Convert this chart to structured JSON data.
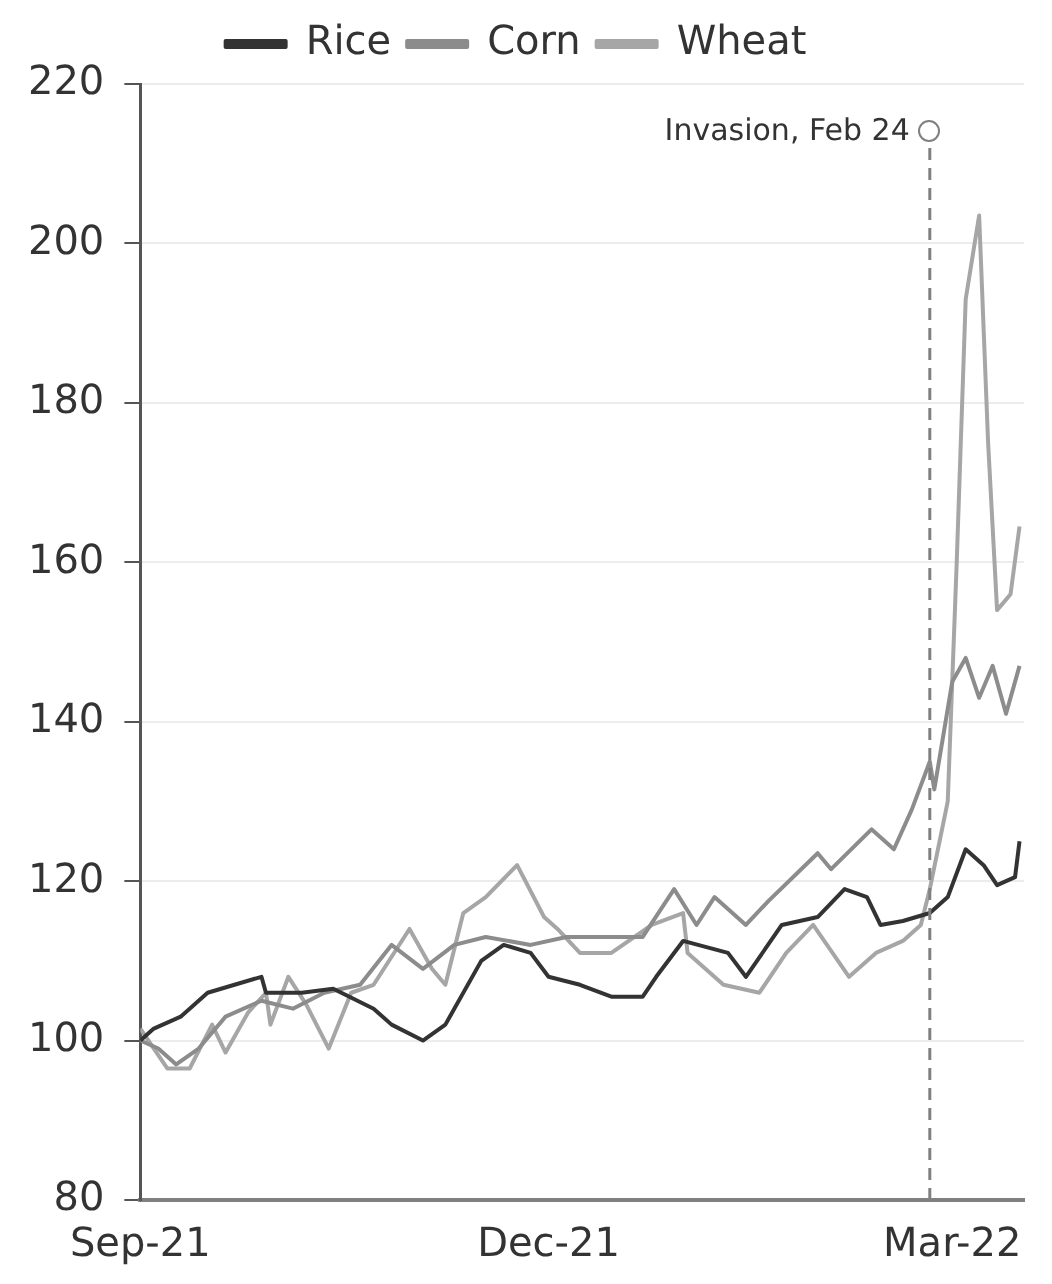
{
  "chart_data": {
    "type": "line",
    "xlim": [
      "2021-09-01",
      "2022-03-17"
    ],
    "xticks": [
      {
        "value": "2021-09-01",
        "label": "Sep-21"
      },
      {
        "value": "2021-12-01",
        "label": "Dec-21"
      },
      {
        "value": "2022-03-01",
        "label": "Mar-22"
      }
    ],
    "ylim": [
      80,
      220
    ],
    "yticks": [
      80,
      100,
      120,
      140,
      160,
      180,
      200,
      220
    ],
    "grid": "y",
    "legend": "top",
    "marker": "none",
    "line_style": "solid",
    "ref_lines": [
      {
        "axis": "x",
        "value": "2022-02-24",
        "label": "Invasion, Feb 24",
        "color": "#808080",
        "line_style": "dashed"
      }
    ],
    "series": [
      {
        "name": "Rice",
        "color": "#333333",
        "x": [
          "2021-09-01",
          "2021-09-04",
          "2021-09-10",
          "2021-09-16",
          "2021-09-22",
          "2021-09-28",
          "2021-09-29",
          "2021-10-07",
          "2021-10-14",
          "2021-10-23",
          "2021-10-27",
          "2021-11-03",
          "2021-11-08",
          "2021-11-16",
          "2021-11-21",
          "2021-11-27",
          "2021-12-01",
          "2021-12-08",
          "2021-12-15",
          "2021-12-22",
          "2021-12-25",
          "2021-12-31",
          "2022-01-10",
          "2022-01-14",
          "2022-01-22",
          "2022-01-30",
          "2022-02-05",
          "2022-02-10",
          "2022-02-13",
          "2022-02-18",
          "2022-02-24",
          "2022-02-28",
          "2022-03-04",
          "2022-03-08",
          "2022-03-11",
          "2022-03-15",
          "2022-03-16"
        ],
        "values": [
          100,
          101.5,
          103,
          106,
          107,
          108,
          106,
          106,
          106.5,
          104,
          102,
          100,
          102,
          110,
          112,
          111,
          108,
          107,
          105.5,
          105.5,
          108,
          112.5,
          111,
          108,
          114.5,
          115.5,
          119,
          118,
          114.5,
          115,
          116,
          118,
          124,
          122,
          119.5,
          120.5,
          125
        ]
      },
      {
        "name": "Corn",
        "color": "#8c8c8c",
        "x": [
          "2021-09-01",
          "2021-09-05",
          "2021-09-09",
          "2021-09-14",
          "2021-09-20",
          "2021-09-28",
          "2021-10-05",
          "2021-10-12",
          "2021-10-20",
          "2021-10-27",
          "2021-11-03",
          "2021-11-10",
          "2021-11-17",
          "2021-11-27",
          "2021-12-05",
          "2021-12-15",
          "2021-12-22",
          "2021-12-29",
          "2022-01-03",
          "2022-01-07",
          "2022-01-14",
          "2022-01-19",
          "2022-01-30",
          "2022-02-02",
          "2022-02-11",
          "2022-02-16",
          "2022-02-20",
          "2022-02-24",
          "2022-02-25",
          "2022-03-01",
          "2022-03-04",
          "2022-03-07",
          "2022-03-10",
          "2022-03-13",
          "2022-03-16"
        ],
        "values": [
          100,
          99,
          97,
          99,
          103,
          105,
          104,
          106,
          107,
          112,
          109,
          112,
          113,
          112,
          113,
          113,
          113,
          119,
          114.5,
          118,
          114.5,
          117.5,
          123.5,
          121.5,
          126.5,
          124,
          129,
          135,
          131.5,
          145,
          148,
          143,
          147,
          141,
          147
        ]
      },
      {
        "name": "Wheat",
        "color": "#a6a6a6",
        "x": [
          "2021-09-01",
          "2021-09-07",
          "2021-09-12",
          "2021-09-17",
          "2021-09-20",
          "2021-09-25",
          "2021-09-29",
          "2021-09-30",
          "2021-10-04",
          "2021-10-08",
          "2021-10-13",
          "2021-10-18",
          "2021-10-23",
          "2021-10-31",
          "2021-11-05",
          "2021-11-08",
          "2021-11-12",
          "2021-11-17",
          "2021-11-24",
          "2021-11-30",
          "2021-12-03",
          "2021-12-08",
          "2021-12-15",
          "2021-12-24",
          "2021-12-31",
          "2022-01-01",
          "2022-01-09",
          "2022-01-17",
          "2022-01-23",
          "2022-01-29",
          "2022-02-06",
          "2022-02-12",
          "2022-02-18",
          "2022-02-22",
          "2022-02-24",
          "2022-02-28",
          "2022-03-02",
          "2022-03-04",
          "2022-03-07",
          "2022-03-09",
          "2022-03-11",
          "2022-03-14",
          "2022-03-16"
        ],
        "values": [
          101.5,
          96.5,
          96.5,
          102,
          98.5,
          103.5,
          106,
          102,
          108,
          104.5,
          99,
          106,
          107,
          114,
          109,
          107,
          116,
          118,
          122,
          115.5,
          114,
          111,
          111,
          114.5,
          116,
          111,
          107,
          106,
          111,
          114.5,
          108,
          111,
          112.5,
          114.5,
          119,
          130,
          160,
          193,
          203.5,
          175,
          154,
          156,
          164.5
        ]
      }
    ]
  }
}
